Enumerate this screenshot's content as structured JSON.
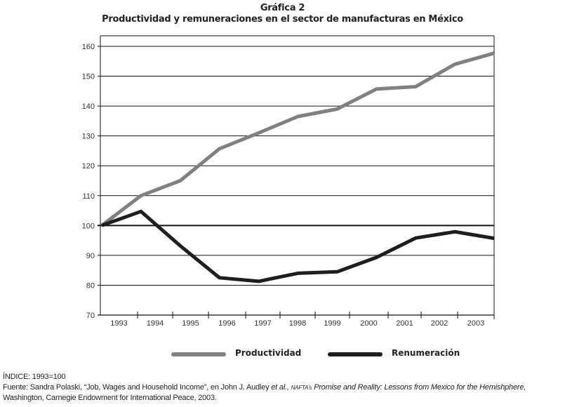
{
  "title": "Gráfica 2",
  "subtitle": "Productividad y remuneraciones en el sector de manufacturas en México",
  "chart_data": {
    "type": "line",
    "x": [
      "1993",
      "1994",
      "1995",
      "1996",
      "1997",
      "1998",
      "1999",
      "2000",
      "2001",
      "2002",
      "2003"
    ],
    "ylim": [
      70,
      160
    ],
    "yticks": [
      70,
      80,
      90,
      100,
      110,
      120,
      130,
      140,
      150,
      160
    ],
    "grid": true,
    "legend_placement": "bottom",
    "series": [
      {
        "name": "Productividad",
        "color": "#808080",
        "values": [
          100,
          110,
          115,
          125.7,
          131,
          136.5,
          139,
          145.7,
          146.5,
          154,
          157.7
        ]
      },
      {
        "name": "Renumeración",
        "color": "#1e1e1e",
        "values": [
          100,
          104.7,
          93.2,
          82.5,
          81.3,
          84,
          84.5,
          89.3,
          95.8,
          97.9,
          95.7
        ]
      }
    ]
  },
  "footer": {
    "index_note": "ÍNDICE: 1993=100",
    "source_prefix": "Fuente: Sandra Polaski, “Job, Wages and Household Income”, en John J. Audley ",
    "source_etal": "et al.,",
    "source_nafta": "NAFTA’s",
    "source_book": " Promise and Reality: Lessons from Mexico for the Hemishphere,",
    "source_line2": "Washington, Carnegie Endowment for International Peace, 2003."
  }
}
